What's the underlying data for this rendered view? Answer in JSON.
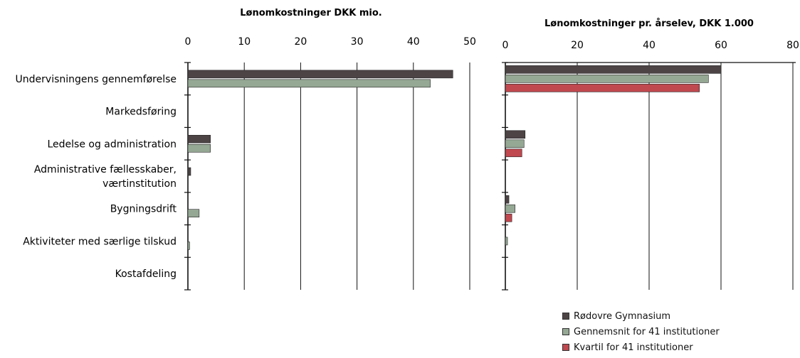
{
  "chart_data": [
    {
      "type": "bar",
      "title": "Lønomkostninger DKK mio.",
      "xlim": [
        0,
        50
      ],
      "ticks": [
        0,
        10,
        20,
        30,
        40,
        50
      ],
      "categories": [
        "Undervisningens gennemførelse",
        "Markedsføring",
        "Ledelse og administration",
        "Administrative fællesskaber, værtinstitution",
        "Bygningsdrift",
        "Aktiviteter med særlige tilskud",
        "Kostafdeling"
      ],
      "category_lines": [
        [
          "Undervisningens gennemførelse"
        ],
        [
          "Markedsføring"
        ],
        [
          "Ledelse og administration"
        ],
        [
          "Administrative fællesskaber,",
          "værtinstitution"
        ],
        [
          "Bygningsdrift"
        ],
        [
          "Aktiviteter med særlige tilskud"
        ],
        [
          "Kostafdeling"
        ]
      ],
      "series": [
        {
          "name": "Rødovre Gymnasium",
          "values": [
            47,
            0,
            4,
            0.5,
            0,
            0,
            0
          ]
        },
        {
          "name": "Gennemsnit for 41 institutioner",
          "values": [
            43,
            0,
            4,
            0,
            2,
            0.3,
            0
          ]
        }
      ]
    },
    {
      "type": "bar",
      "title": "Lønomkostninger pr. årselev, DKK 1.000",
      "xlim": [
        0,
        80
      ],
      "ticks": [
        0,
        20,
        40,
        60,
        80
      ],
      "categories": [
        "Undervisningens gennemførelse",
        "Markedsføring",
        "Ledelse og administration",
        "Administrative fællesskaber, værtinstitution",
        "Bygningsdrift",
        "Aktiviteter med særlige tilskud",
        "Kostafdeling"
      ],
      "series": [
        {
          "name": "Rødovre Gymnasium",
          "values": [
            60,
            0,
            5.5,
            0,
            1,
            0,
            0
          ]
        },
        {
          "name": "Gennemsnit for 41 institutioner",
          "values": [
            56.5,
            0,
            5.2,
            0,
            2.7,
            0.6,
            0
          ]
        },
        {
          "name": "Kvartil for 41 institutioner",
          "values": [
            54,
            0,
            4.6,
            0,
            1.8,
            0,
            0
          ]
        }
      ]
    }
  ],
  "legend": [
    {
      "label": "Rødovre Gymnasium",
      "color": "#4d4446"
    },
    {
      "label": "Gennemsnit for 41 institutioner",
      "color": "#95a894"
    },
    {
      "label": "Kvartil for 41 institutioner",
      "color": "#c0484f"
    }
  ],
  "colors": {
    "series_1": "#4d4446",
    "series_2": "#95a894",
    "series_3": "#c0484f",
    "axis": "#111111",
    "grid": "#111111"
  }
}
